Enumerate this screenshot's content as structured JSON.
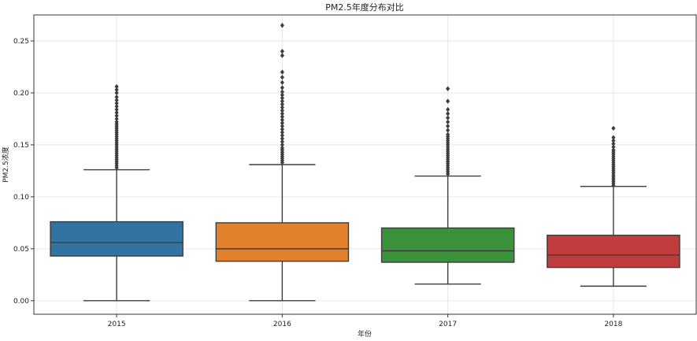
{
  "chart_data": {
    "type": "box",
    "title": "PM2.5年度分布对比",
    "xlabel": "年份",
    "ylabel": "PM2.5浓度",
    "categories": [
      "2015",
      "2016",
      "2017",
      "2018"
    ],
    "ylim": [
      -0.013,
      0.275
    ],
    "yticks": [
      0.0,
      0.05,
      0.1,
      0.15,
      0.2,
      0.25
    ],
    "ytick_labels": [
      "0.00",
      "0.05",
      "0.10",
      "0.15",
      "0.20",
      "0.25"
    ],
    "grid": true,
    "boxes": [
      {
        "category": "2015",
        "color": "#3274a1",
        "whisker_low": 0.0,
        "q1": 0.043,
        "median": 0.056,
        "q3": 0.076,
        "whisker_high": 0.126,
        "outliers": [
          0.128,
          0.13,
          0.132,
          0.134,
          0.136,
          0.138,
          0.14,
          0.142,
          0.144,
          0.146,
          0.148,
          0.15,
          0.152,
          0.154,
          0.156,
          0.158,
          0.16,
          0.162,
          0.164,
          0.166,
          0.168,
          0.17,
          0.172,
          0.175,
          0.178,
          0.181,
          0.184,
          0.187,
          0.19,
          0.193,
          0.196,
          0.2,
          0.203,
          0.206
        ]
      },
      {
        "category": "2016",
        "color": "#e1812c",
        "whisker_low": 0.0,
        "q1": 0.038,
        "median": 0.05,
        "q3": 0.075,
        "whisker_high": 0.131,
        "outliers": [
          0.133,
          0.135,
          0.137,
          0.139,
          0.141,
          0.143,
          0.145,
          0.147,
          0.15,
          0.153,
          0.156,
          0.159,
          0.162,
          0.165,
          0.168,
          0.171,
          0.174,
          0.177,
          0.18,
          0.183,
          0.186,
          0.189,
          0.192,
          0.195,
          0.198,
          0.201,
          0.205,
          0.21,
          0.215,
          0.22,
          0.236,
          0.24,
          0.265
        ]
      },
      {
        "category": "2017",
        "color": "#3a923a",
        "whisker_low": 0.016,
        "q1": 0.037,
        "median": 0.048,
        "q3": 0.07,
        "whisker_high": 0.12,
        "outliers": [
          0.122,
          0.124,
          0.126,
          0.128,
          0.13,
          0.132,
          0.134,
          0.136,
          0.138,
          0.14,
          0.142,
          0.144,
          0.146,
          0.148,
          0.15,
          0.152,
          0.154,
          0.156,
          0.158,
          0.16,
          0.164,
          0.168,
          0.172,
          0.176,
          0.18,
          0.184,
          0.192,
          0.204
        ]
      },
      {
        "category": "2018",
        "color": "#c03d3e",
        "whisker_low": 0.014,
        "q1": 0.032,
        "median": 0.044,
        "q3": 0.063,
        "whisker_high": 0.11,
        "outliers": [
          0.111,
          0.113,
          0.115,
          0.117,
          0.119,
          0.121,
          0.123,
          0.125,
          0.127,
          0.129,
          0.131,
          0.133,
          0.135,
          0.137,
          0.139,
          0.141,
          0.143,
          0.145,
          0.148,
          0.151,
          0.154,
          0.157,
          0.166
        ]
      }
    ]
  }
}
